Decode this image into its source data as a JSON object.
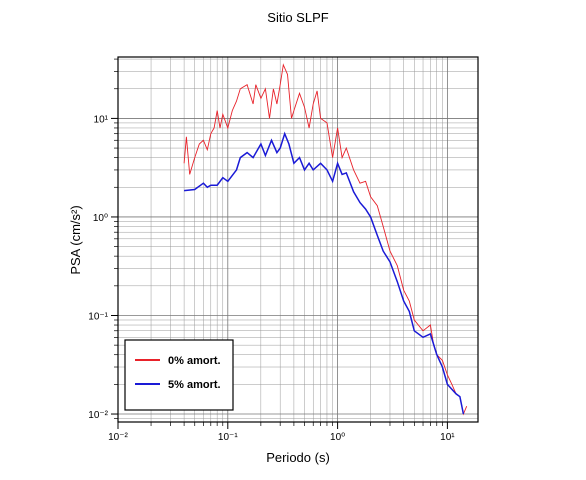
{
  "chart_data": {
    "type": "line",
    "title": "Sitio SLPF",
    "x_label": "Periodo (s)",
    "y_label": "PSA (cm/s²)",
    "xscale": "log",
    "yscale": "log",
    "grid": true,
    "legend": "lower left",
    "xlim": [
      0.01,
      19
    ],
    "ylim": [
      0.0083,
      42
    ],
    "xticks": [
      {
        "value": 0.01,
        "label": "10⁻²"
      },
      {
        "value": 0.1,
        "label": "10⁻¹"
      },
      {
        "value": 1,
        "label": "10⁰"
      },
      {
        "value": 10,
        "label": "10¹"
      }
    ],
    "yticks": [
      {
        "value": 0.01,
        "label": "10⁻²"
      },
      {
        "value": 0.1,
        "label": "10⁻¹"
      },
      {
        "value": 1,
        "label": "10⁰"
      },
      {
        "value": 10,
        "label": "10¹"
      }
    ],
    "series": [
      {
        "name": "0% amort.",
        "color": "#e8222a",
        "x": [
          0.04,
          0.042,
          0.045,
          0.05,
          0.055,
          0.06,
          0.065,
          0.07,
          0.075,
          0.08,
          0.085,
          0.09,
          0.1,
          0.11,
          0.12,
          0.13,
          0.15,
          0.17,
          0.18,
          0.2,
          0.22,
          0.24,
          0.26,
          0.28,
          0.3,
          0.32,
          0.35,
          0.38,
          0.4,
          0.45,
          0.5,
          0.55,
          0.6,
          0.65,
          0.7,
          0.8,
          0.9,
          1.0,
          1.1,
          1.2,
          1.4,
          1.6,
          1.8,
          2.0,
          2.3,
          2.6,
          3.0,
          3.5,
          4.0,
          4.5,
          5.0,
          6.0,
          7.0,
          7.5,
          8.0,
          9.0,
          10,
          11,
          12,
          13,
          14,
          15
        ],
        "values": [
          3.5,
          6.5,
          2.7,
          4,
          5.5,
          6,
          4.8,
          7,
          8,
          12,
          8,
          11,
          8,
          12,
          15,
          20,
          22,
          14,
          22,
          16,
          20,
          10,
          20,
          14,
          22,
          35,
          28,
          10,
          12,
          18,
          13,
          8,
          14,
          19,
          10,
          9,
          4,
          8,
          4,
          5,
          3,
          2.2,
          2.3,
          1.6,
          1.3,
          0.8,
          0.45,
          0.32,
          0.18,
          0.14,
          0.09,
          0.07,
          0.08,
          0.05,
          0.04,
          0.035,
          0.025,
          0.02,
          0.016,
          0.015,
          0.01,
          0.012
        ]
      },
      {
        "name": "5% amort.",
        "color": "#1a1ad6",
        "x": [
          0.04,
          0.05,
          0.06,
          0.065,
          0.07,
          0.08,
          0.09,
          0.1,
          0.12,
          0.13,
          0.15,
          0.17,
          0.2,
          0.22,
          0.25,
          0.28,
          0.3,
          0.33,
          0.36,
          0.4,
          0.45,
          0.5,
          0.55,
          0.6,
          0.7,
          0.8,
          0.9,
          1.0,
          1.1,
          1.2,
          1.4,
          1.6,
          1.8,
          2.0,
          2.3,
          2.6,
          3.0,
          3.5,
          4.0,
          4.5,
          5.0,
          6.0,
          7.0,
          8.0,
          9.0,
          10,
          12,
          13,
          14
        ],
        "values": [
          1.85,
          1.9,
          2.2,
          2.0,
          2.1,
          2.1,
          2.5,
          2.3,
          3,
          4,
          4.5,
          4,
          5.5,
          4.2,
          6,
          4.5,
          5,
          7,
          5.5,
          3.5,
          4,
          3,
          3.5,
          3,
          3.5,
          3,
          2.3,
          3.5,
          2.7,
          2.8,
          1.8,
          1.4,
          1.2,
          1.0,
          0.65,
          0.45,
          0.35,
          0.22,
          0.14,
          0.11,
          0.07,
          0.06,
          0.065,
          0.04,
          0.03,
          0.02,
          0.016,
          0.015,
          0.01
        ]
      }
    ]
  }
}
